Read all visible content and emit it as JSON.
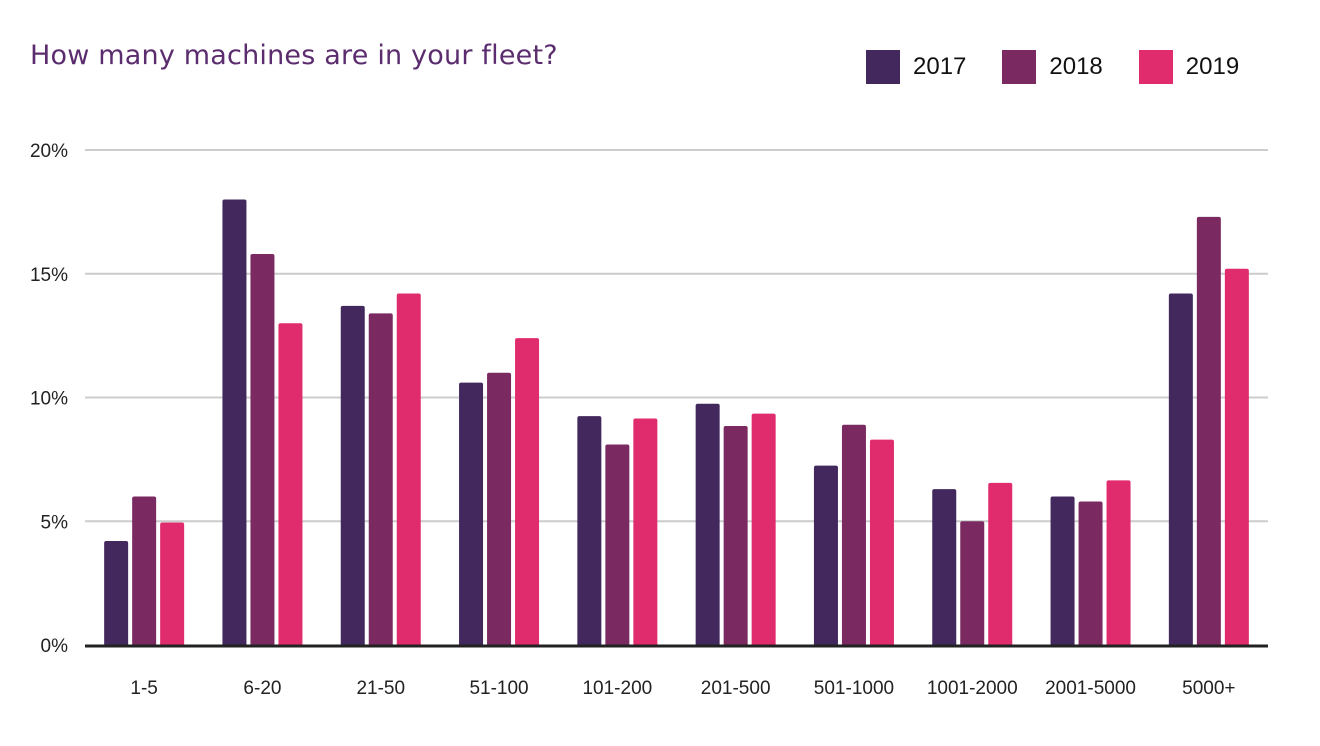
{
  "chart_data": {
    "type": "bar",
    "title": "How many machines are in your fleet?",
    "categories": [
      "1-5",
      "6-20",
      "21-50",
      "51-100",
      "101-200",
      "201-500",
      "501-1000",
      "1001-2000",
      "2001-5000",
      "5000+"
    ],
    "series": [
      {
        "name": "2017",
        "color": "#42285c",
        "values": [
          4.2,
          18.0,
          13.7,
          10.6,
          9.25,
          9.75,
          7.25,
          6.3,
          6.0,
          14.2
        ]
      },
      {
        "name": "2018",
        "color": "#7a2a61",
        "values": [
          6.0,
          15.8,
          13.4,
          11.0,
          8.1,
          8.85,
          8.9,
          5.0,
          5.8,
          17.3
        ]
      },
      {
        "name": "2019",
        "color": "#e02b6d",
        "values": [
          4.95,
          13.0,
          14.2,
          12.4,
          9.15,
          9.35,
          8.3,
          6.55,
          6.65,
          15.2
        ]
      }
    ],
    "yticks": [
      "0%",
      "5%",
      "10%",
      "15%",
      "20%"
    ],
    "ylim": [
      0,
      20
    ],
    "grid": true,
    "legend_position": "top-right"
  }
}
